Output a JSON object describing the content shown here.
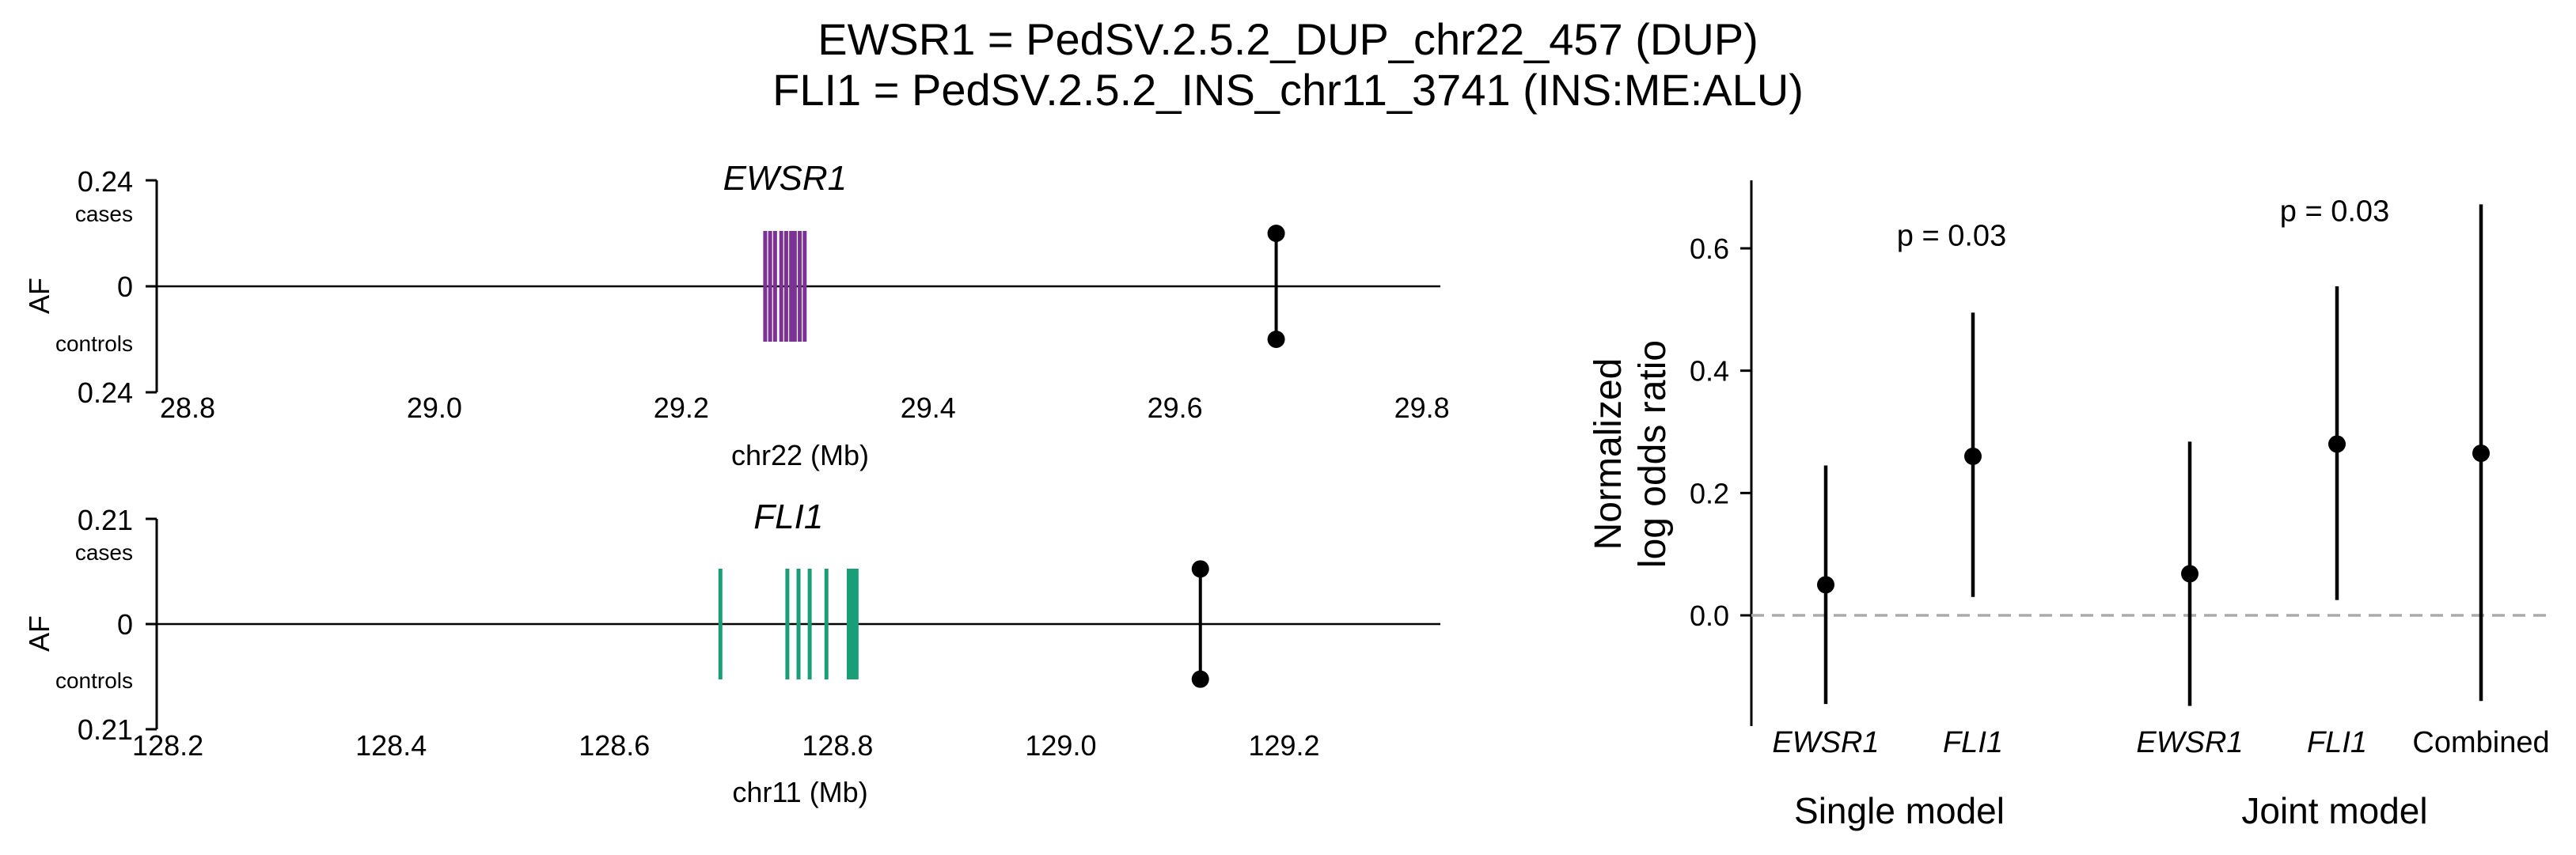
{
  "title_line1": "EWSR1 = PedSV.2.5.2_DUP_chr22_457 (DUP)",
  "title_line2": "FLI1 = PedSV.2.5.2_INS_chr11_3741 (INS:ME:ALU)",
  "colors": {
    "ewsr1": "#7b3294",
    "fli1": "#1a9e77",
    "marker": "#000000",
    "reference_line": "#aaaaaa"
  },
  "chart_data": [
    {
      "type": "scatter",
      "panel": "locus-ewsr1",
      "gene_label": "EWSR1",
      "xlabel": "chr22 (Mb)",
      "ylabel": "AF",
      "xlim": [
        28.775,
        29.815
      ],
      "x_ticks": [
        "28.8",
        "29.0",
        "29.2",
        "29.4",
        "29.6",
        "29.8"
      ],
      "y_ticks": {
        "top": "0.24",
        "center": "0",
        "bottom": "0.24"
      },
      "y_tick_sublabels": {
        "top": "cases",
        "bottom": "controls"
      },
      "ylim": [
        -0.24,
        0.24
      ],
      "exon_positions_mb": [
        29.268,
        29.272,
        29.276,
        29.281,
        29.285,
        29.289,
        29.292,
        29.296,
        29.3
      ],
      "variant": {
        "position_mb": 29.682,
        "af_cases": 0.12,
        "af_controls": 0.12
      }
    },
    {
      "type": "scatter",
      "panel": "locus-fli1",
      "gene_label": "FLI1",
      "xlabel": "chr11 (Mb)",
      "ylabel": "AF",
      "xlim": [
        128.19,
        129.34
      ],
      "x_ticks": [
        "128.2",
        "128.4",
        "128.6",
        "128.8",
        "129.0",
        "129.2"
      ],
      "y_ticks": {
        "top": "0.21",
        "center": "0",
        "bottom": "0.21"
      },
      "y_tick_sublabels": {
        "top": "cases",
        "bottom": "controls"
      },
      "ylim": [
        -0.21,
        0.21
      ],
      "exon_positions_mb": [
        128.695,
        128.755,
        128.765,
        128.775,
        128.79,
        128.81,
        128.812,
        128.814,
        128.817
      ],
      "variant": {
        "position_mb": 129.125,
        "af_cases": 0.11,
        "af_controls": 0.11
      }
    },
    {
      "type": "scatter",
      "panel": "odds-ratio",
      "ylabel": "Normalized\nlog odds ratio",
      "ylim": [
        -0.18,
        0.71
      ],
      "y_ticks": [
        "0.0",
        "0.2",
        "0.4",
        "0.6"
      ],
      "y_tick_values": [
        0.0,
        0.2,
        0.4,
        0.6
      ],
      "reference_y": 0.0,
      "groups": [
        {
          "label": "Single model",
          "pvalue_text": "p = 0.03",
          "pvalue_y": 0.62
        },
        {
          "label": "Joint model",
          "pvalue_text": "p = 0.03",
          "pvalue_y": 0.66
        }
      ],
      "points": [
        {
          "label": "EWSR1",
          "italic": true,
          "group": 0,
          "estimate": 0.05,
          "ci_low": -0.145,
          "ci_high": 0.245
        },
        {
          "label": "FLI1",
          "italic": true,
          "group": 0,
          "estimate": 0.26,
          "ci_low": 0.03,
          "ci_high": 0.495
        },
        {
          "label": "EWSR1",
          "italic": true,
          "group": 1,
          "estimate": 0.068,
          "ci_low": -0.148,
          "ci_high": 0.284
        },
        {
          "label": "FLI1",
          "italic": true,
          "group": 1,
          "estimate": 0.28,
          "ci_low": 0.025,
          "ci_high": 0.538
        },
        {
          "label": "Combined",
          "italic": false,
          "group": 1,
          "estimate": 0.265,
          "ci_low": -0.14,
          "ci_high": 0.672
        }
      ]
    }
  ]
}
